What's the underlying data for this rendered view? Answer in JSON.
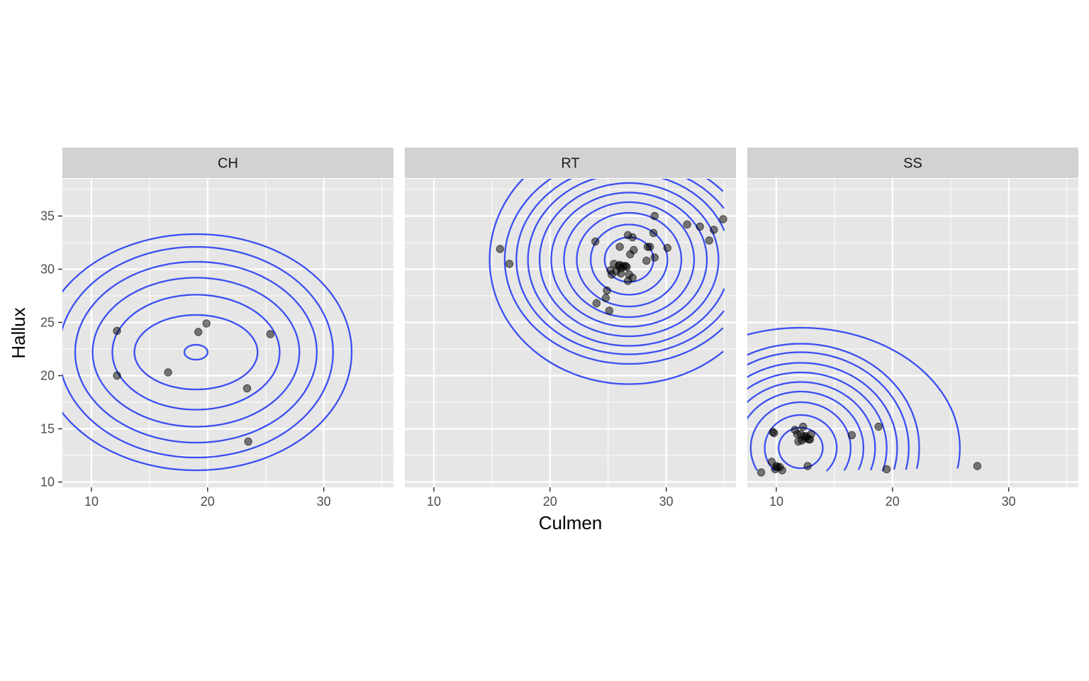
{
  "chart_data": {
    "type": "scatter",
    "title": "",
    "xlabel": "Culmen",
    "ylabel": "Hallux",
    "xlim": [
      7.5,
      36
    ],
    "ylim": [
      9.5,
      38.5
    ],
    "x_ticks": [
      10,
      20,
      30
    ],
    "y_ticks": [
      10,
      15,
      20,
      25,
      30,
      35
    ],
    "grid": true,
    "legend": "none",
    "colors": {
      "panel_bg": "#e6e6e6",
      "strip_bg": "#d2d2d2",
      "grid": "#ffffff",
      "contour": "#3a4ff2",
      "point": "#000000"
    },
    "panels": [
      {
        "strip": "CH",
        "points": [
          [
            12.2,
            24.2
          ],
          [
            12.2,
            20.0
          ],
          [
            16.6,
            20.3
          ],
          [
            19.2,
            24.1
          ],
          [
            19.9,
            24.9
          ],
          [
            25.4,
            23.9
          ],
          [
            23.4,
            18.8
          ],
          [
            23.5,
            13.8
          ]
        ],
        "contours": [
          {
            "cx": 19.0,
            "cy": 22.2,
            "rx": 1.0,
            "ry": 0.7,
            "cut": null
          },
          {
            "cx": 19.0,
            "cy": 22.2,
            "rx": 5.3,
            "ry": 3.5,
            "cut": null
          },
          {
            "cx": 19.0,
            "cy": 22.2,
            "rx": 7.2,
            "ry": 5.4,
            "cut": null
          },
          {
            "cx": 19.0,
            "cy": 22.2,
            "rx": 8.9,
            "ry": 7.0,
            "cut": null
          },
          {
            "cx": 19.0,
            "cy": 22.2,
            "rx": 10.4,
            "ry": 8.5,
            "cut": 11.0
          },
          {
            "cx": 19.0,
            "cy": 22.2,
            "rx": 11.8,
            "ry": 9.9,
            "cut": 11.0
          },
          {
            "cx": 19.0,
            "cy": 22.2,
            "rx": 13.4,
            "ry": 11.1,
            "cut": 11.0
          }
        ]
      },
      {
        "strip": "RT",
        "points": [
          [
            15.7,
            31.9
          ],
          [
            16.5,
            30.5
          ],
          [
            23.9,
            32.6
          ],
          [
            24.0,
            26.8
          ],
          [
            24.8,
            27.3
          ],
          [
            24.9,
            28.0
          ],
          [
            25.1,
            26.1
          ],
          [
            25.2,
            29.9
          ],
          [
            25.3,
            29.5
          ],
          [
            25.5,
            30.5
          ],
          [
            25.7,
            29.8
          ],
          [
            25.9,
            30.3
          ],
          [
            26.0,
            30.4
          ],
          [
            26.1,
            30.1
          ],
          [
            26.1,
            29.6
          ],
          [
            26.3,
            30.3
          ],
          [
            26.5,
            30.3
          ],
          [
            26.6,
            30.2
          ],
          [
            26.7,
            28.9
          ],
          [
            26.8,
            29.5
          ],
          [
            26.9,
            31.4
          ],
          [
            27.1,
            29.2
          ],
          [
            27.1,
            33.0
          ],
          [
            27.2,
            31.8
          ],
          [
            26.7,
            33.2
          ],
          [
            26.0,
            32.1
          ],
          [
            28.3,
            30.8
          ],
          [
            28.4,
            32.1
          ],
          [
            28.6,
            32.1
          ],
          [
            28.9,
            33.4
          ],
          [
            29.0,
            31.1
          ],
          [
            29.0,
            35.0
          ],
          [
            30.1,
            32.0
          ],
          [
            31.8,
            34.2
          ],
          [
            32.9,
            34.0
          ],
          [
            33.7,
            32.7
          ],
          [
            34.1,
            33.7
          ],
          [
            34.9,
            34.7
          ]
        ],
        "contours": [
          {
            "cx": 26.8,
            "cy": 30.9,
            "rx": 2.1,
            "ry": 2.1,
            "cut": null
          },
          {
            "cx": 26.8,
            "cy": 30.9,
            "rx": 3.3,
            "ry": 3.3,
            "cut": null
          },
          {
            "cx": 26.8,
            "cy": 30.9,
            "rx": 4.5,
            "ry": 4.4,
            "cut": null
          },
          {
            "cx": 26.8,
            "cy": 30.9,
            "rx": 5.6,
            "ry": 5.4,
            "cut": 35.0
          },
          {
            "cx": 26.8,
            "cy": 30.9,
            "rx": 6.7,
            "ry": 6.3,
            "cut": 35.0
          },
          {
            "cx": 26.8,
            "cy": 30.9,
            "rx": 7.7,
            "ry": 7.2,
            "cut": 35.0
          },
          {
            "cx": 26.8,
            "cy": 30.9,
            "rx": 8.7,
            "ry": 8.1,
            "cut": 35.0
          },
          {
            "cx": 26.8,
            "cy": 30.9,
            "rx": 9.7,
            "ry": 8.9,
            "cut": 35.0
          },
          {
            "cx": 26.8,
            "cy": 30.9,
            "rx": 10.7,
            "ry": 9.8,
            "cut": 35.0
          },
          {
            "cx": 26.8,
            "cy": 30.9,
            "rx": 12.0,
            "ry": 11.7,
            "cut": 35.0
          }
        ]
      },
      {
        "strip": "SS",
        "points": [
          [
            8.7,
            10.9
          ],
          [
            9.6,
            11.9
          ],
          [
            9.7,
            14.7
          ],
          [
            9.8,
            14.6
          ],
          [
            9.9,
            11.2
          ],
          [
            10.0,
            11.5
          ],
          [
            10.1,
            11.4
          ],
          [
            10.3,
            11.4
          ],
          [
            10.5,
            11.1
          ],
          [
            11.6,
            14.9
          ],
          [
            11.8,
            14.5
          ],
          [
            11.9,
            13.8
          ],
          [
            12.1,
            14.5
          ],
          [
            12.2,
            13.9
          ],
          [
            12.3,
            15.2
          ],
          [
            12.4,
            14.3
          ],
          [
            12.5,
            14.1
          ],
          [
            12.6,
            14.3
          ],
          [
            12.8,
            14.0
          ],
          [
            12.9,
            14.0
          ],
          [
            13.0,
            14.5
          ],
          [
            12.7,
            11.5
          ],
          [
            16.5,
            14.4
          ],
          [
            18.8,
            15.2
          ],
          [
            19.5,
            11.2
          ],
          [
            27.3,
            11.5
          ]
        ],
        "contours": [
          {
            "cx": 12.1,
            "cy": 13.2,
            "rx": 1.9,
            "ry": 1.9,
            "cut": null
          },
          {
            "cx": 12.1,
            "cy": 13.2,
            "rx": 3.1,
            "ry": 3.1,
            "cut": 11.0
          },
          {
            "cx": 12.1,
            "cy": 13.2,
            "rx": 4.3,
            "ry": 4.3,
            "cut": 11.0
          },
          {
            "cx": 12.1,
            "cy": 13.2,
            "rx": 5.4,
            "ry": 5.3,
            "cut": 11.0
          },
          {
            "cx": 12.1,
            "cy": 13.2,
            "rx": 6.4,
            "ry": 6.2,
            "cut": 11.0
          },
          {
            "cx": 12.1,
            "cy": 13.2,
            "rx": 7.4,
            "ry": 7.1,
            "cut": 11.0
          },
          {
            "cx": 12.1,
            "cy": 13.2,
            "rx": 8.3,
            "ry": 8.0,
            "cut": 11.0
          },
          {
            "cx": 12.1,
            "cy": 13.2,
            "rx": 9.3,
            "ry": 9.0,
            "cut": 11.0
          },
          {
            "cx": 12.1,
            "cy": 13.2,
            "rx": 10.2,
            "ry": 9.8,
            "cut": 11.0
          },
          {
            "cx": 12.1,
            "cy": 13.2,
            "rx": 13.7,
            "ry": 11.3,
            "cut": 11.0
          }
        ]
      }
    ]
  }
}
